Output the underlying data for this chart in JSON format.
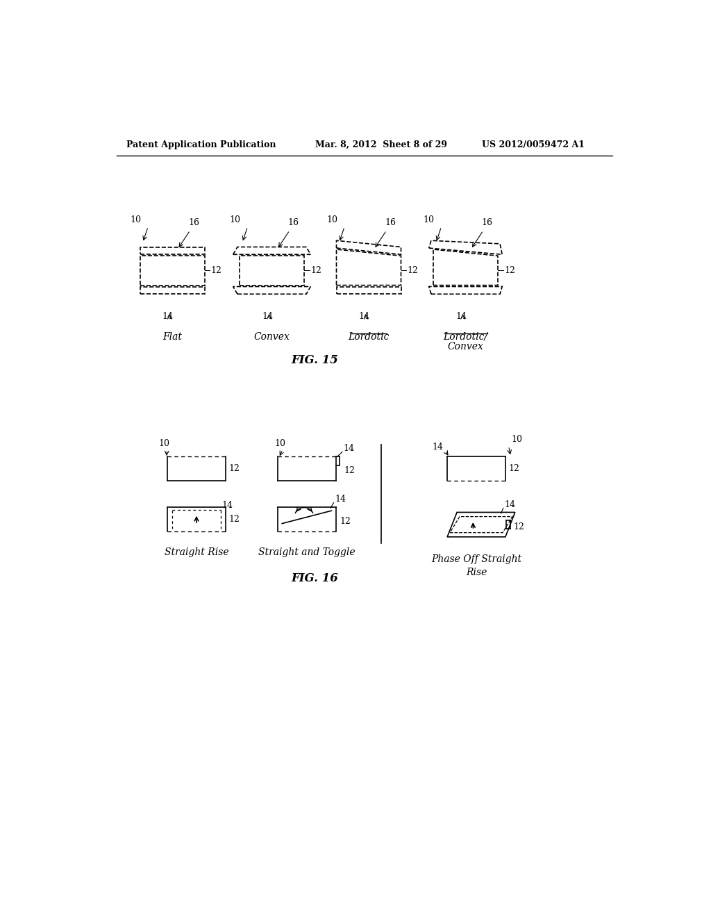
{
  "background_color": "#ffffff",
  "header_left": "Patent Application Publication",
  "header_center": "Mar. 8, 2012  Sheet 8 of 29",
  "header_right": "US 2012/0059472 A1",
  "fig15_title": "FIG. 15",
  "fig16_title": "FIG. 16",
  "fig15_labels": [
    "Flat",
    "Convex",
    "Lordotic",
    "Lordotic/\nConvex"
  ],
  "fig16_labels": [
    "Straight Rise",
    "Straight and Toggle",
    "Phase Off Straight\nRise"
  ]
}
